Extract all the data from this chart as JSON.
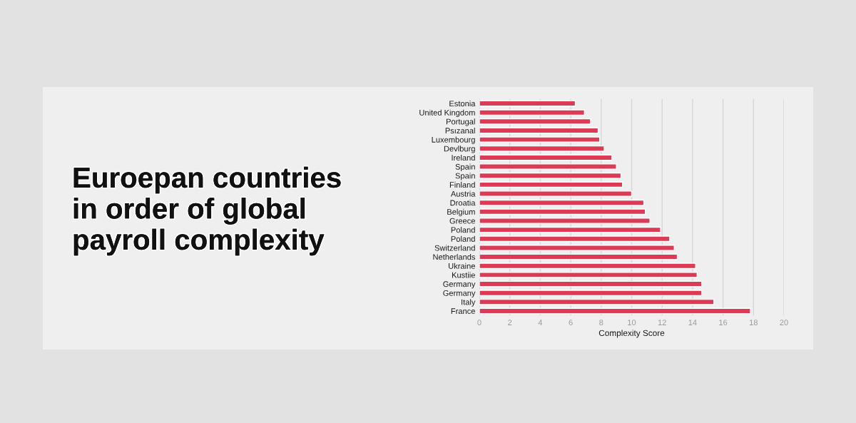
{
  "chart_data": {
    "type": "bar",
    "orientation": "horizontal",
    "title": "Euroepan countries\nin order of global\npayroll complexity",
    "xlabel": "Complexity Score",
    "categories": [
      "Estonia",
      "United Kingdom",
      "Portugal",
      "Psızanal",
      "Luxembourg",
      "Devlburg",
      "Ireland",
      "Spain",
      "Spain",
      "Finland",
      "Austria",
      "Droatia",
      "Belgium",
      "Greece",
      "Poland",
      "Poland",
      "Switzerland",
      "Netherlands",
      "Ukraine",
      "Kustiie",
      "Germany",
      "Germany",
      "Italy",
      "France"
    ],
    "values": [
      6.3,
      6.9,
      7.3,
      7.8,
      7.9,
      8.2,
      8.7,
      9.0,
      9.3,
      9.4,
      10.0,
      10.8,
      10.9,
      11.2,
      11.9,
      12.5,
      12.8,
      13.0,
      14.2,
      14.3,
      14.6,
      14.6,
      15.4,
      17.8
    ],
    "color": "#dc3b55",
    "xlim": [
      0,
      20
    ],
    "xticks": [
      0,
      2,
      4,
      6,
      8,
      10,
      12,
      14,
      16,
      18,
      20
    ],
    "grid": "x"
  }
}
